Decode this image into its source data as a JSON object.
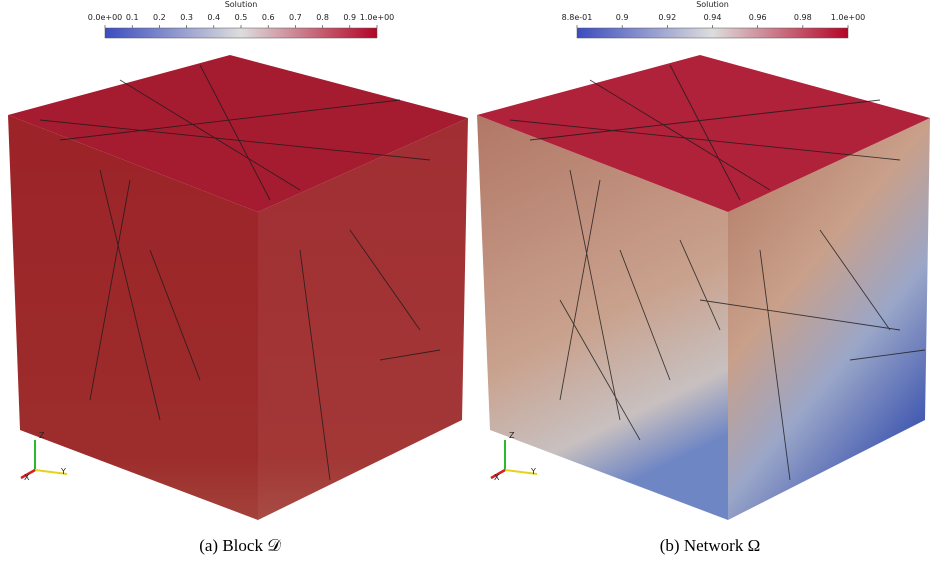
{
  "panels": [
    {
      "colorbar": {
        "title": "Solution",
        "ticks": [
          "0.0e+00",
          "0.1",
          "0.2",
          "0.3",
          "0.4",
          "0.5",
          "0.6",
          "0.7",
          "0.8",
          "0.9",
          "1.0e+00"
        ]
      },
      "axes": {
        "x": "X",
        "y": "Y",
        "z": "Z"
      },
      "caption": "(a) Block 𝒟"
    },
    {
      "colorbar": {
        "title": "Solution",
        "ticks": [
          "8.8e-01",
          "0.9",
          "0.92",
          "0.94",
          "0.96",
          "0.98",
          "1.0e+00"
        ]
      },
      "axes": {
        "x": "X",
        "y": "Y",
        "z": "Z"
      },
      "caption": "(b) Network Ω"
    }
  ]
}
